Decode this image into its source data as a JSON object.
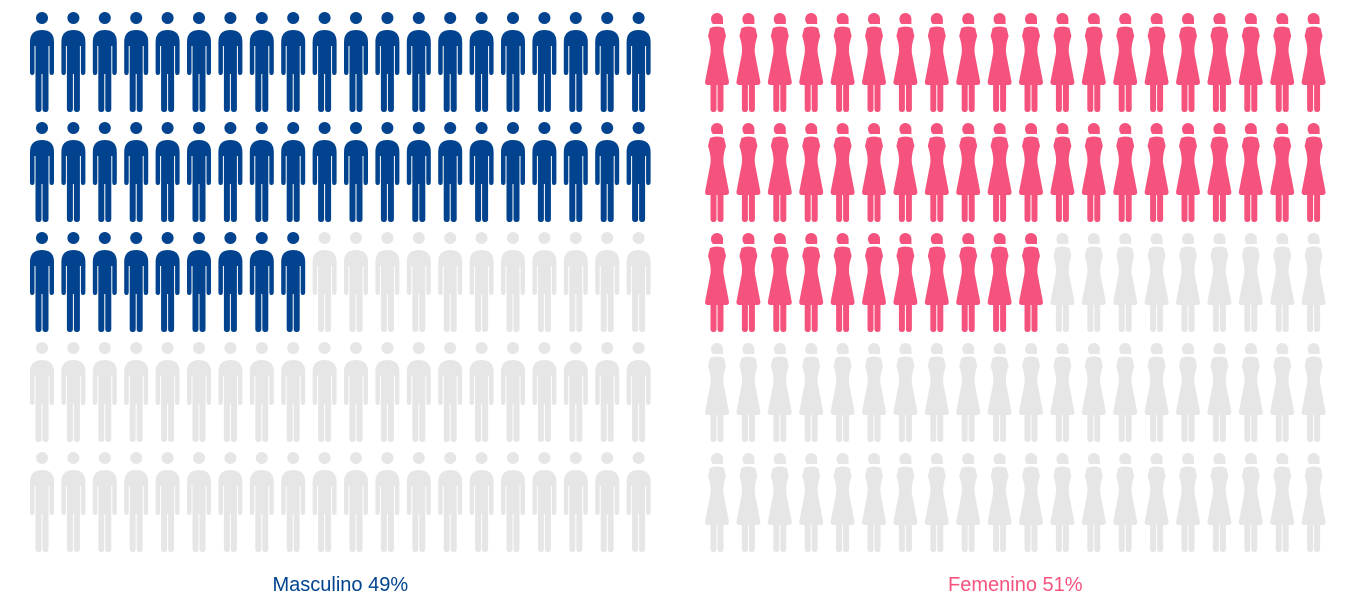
{
  "chart_data": {
    "type": "pictogram",
    "categories": [
      "Masculino",
      "Femenino"
    ],
    "values": [
      49,
      51
    ],
    "value_labels": [
      "49%",
      "51%"
    ],
    "colors": [
      "#01438e",
      "#f5537d"
    ],
    "empty_color": "#e6e6e6"
  }
}
